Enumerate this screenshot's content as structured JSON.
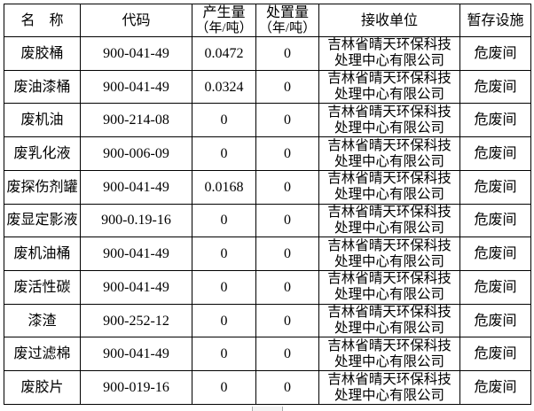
{
  "header": {
    "name": "名　称",
    "code": "代码",
    "produced": "产生量",
    "produced_unit": "（年/吨）",
    "disposed": "处置量",
    "disposed_unit": "（年/吨）",
    "receiver": "接收单位",
    "storage": "暂存设施"
  },
  "rows": [
    {
      "name": "废胶桶",
      "code": "900-041-49",
      "produced": "0.0472",
      "disposed": "0",
      "receiver_line1": "吉林省晴天环保科技",
      "receiver_line2": "处理中心有限公司",
      "storage": "危废间"
    },
    {
      "name": "废油漆桶",
      "code": "900-041-49",
      "produced": "0.0324",
      "disposed": "0",
      "receiver_line1": "吉林省晴天环保科技",
      "receiver_line2": "处理中心有限公司",
      "storage": "危废间"
    },
    {
      "name": "废机油",
      "code": "900-214-08",
      "produced": "0",
      "disposed": "0",
      "receiver_line1": "吉林省晴天环保科技",
      "receiver_line2": "处理中心有限公司",
      "storage": "危废间"
    },
    {
      "name": "废乳化液",
      "code": "900-006-09",
      "produced": "0",
      "disposed": "0",
      "receiver_line1": "吉林省晴天环保科技",
      "receiver_line2": "处理中心有限公司",
      "storage": "危废间"
    },
    {
      "name": "废探伤剂罐",
      "code": "900-041-49",
      "produced": "0.0168",
      "disposed": "0",
      "receiver_line1": "吉林省晴天环保科技",
      "receiver_line2": "处理中心有限公司",
      "storage": "危废间"
    },
    {
      "name": "废显定影液",
      "code": "900-0.19-16",
      "produced": "0",
      "disposed": "0",
      "receiver_line1": "吉林省晴天环保科技",
      "receiver_line2": "处理中心有限公司",
      "storage": "危废间"
    },
    {
      "name": "废机油桶",
      "code": "900-041-49",
      "produced": "0",
      "disposed": "0",
      "receiver_line1": "吉林省晴天环保科技",
      "receiver_line2": "处理中心有限公司",
      "storage": "危废间"
    },
    {
      "name": "废活性碳",
      "code": "900-041-49",
      "produced": "0",
      "disposed": "0",
      "receiver_line1": "吉林省晴天环保科技",
      "receiver_line2": "处理中心有限公司",
      "storage": "危废间"
    },
    {
      "name": "漆渣",
      "code": "900-252-12",
      "produced": "0",
      "disposed": "0",
      "receiver_line1": "吉林省晴天环保科技",
      "receiver_line2": "处理中心有限公司",
      "storage": "危废间"
    },
    {
      "name": "废过滤棉",
      "code": "900-041-49",
      "produced": "0",
      "disposed": "0",
      "receiver_line1": "吉林省晴天环保科技",
      "receiver_line2": "处理中心有限公司",
      "storage": "危废间"
    },
    {
      "name": "废胶片",
      "code": "900-019-16",
      "produced": "0",
      "disposed": "0",
      "receiver_line1": "吉林省晴天环保科技",
      "receiver_line2": "处理中心有限公司",
      "storage": "危废间"
    }
  ]
}
